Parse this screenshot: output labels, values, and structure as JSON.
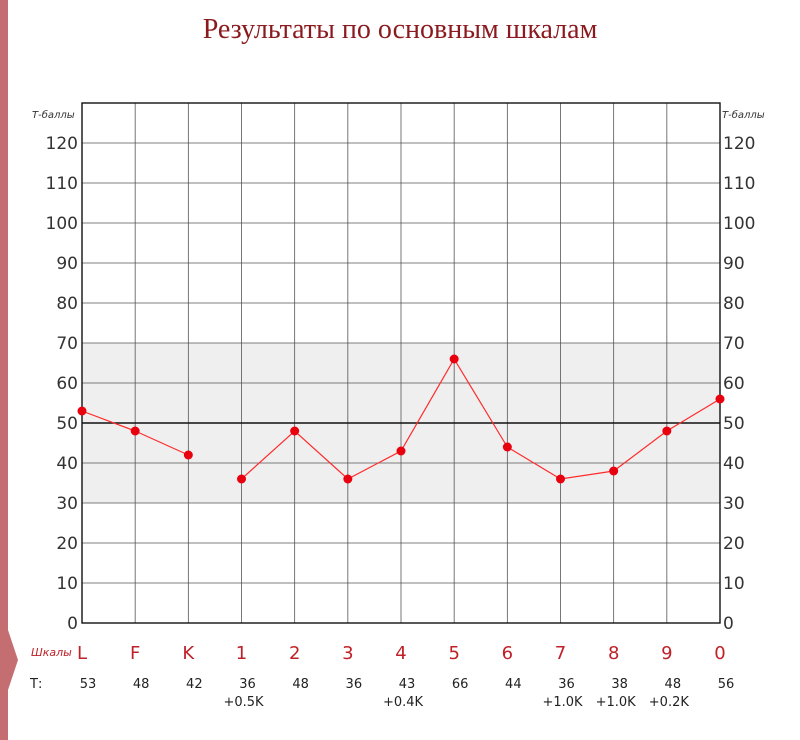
{
  "title": "Результаты по основным шкалам",
  "chart_data": {
    "type": "line",
    "y_axis_caption": "Т-баллы",
    "x_axis_caption": "Шкалы",
    "row_caption": "Т:",
    "categories": [
      "L",
      "F",
      "K",
      "1",
      "2",
      "3",
      "4",
      "5",
      "6",
      "7",
      "8",
      "9",
      "0"
    ],
    "values": [
      53,
      48,
      42,
      36,
      48,
      36,
      43,
      66,
      44,
      36,
      38,
      48,
      56
    ],
    "value_labels": [
      "53",
      "48",
      "42",
      "36",
      "48",
      "36",
      "43",
      "66",
      "44",
      "36",
      "38",
      "48",
      "56"
    ],
    "corrections": [
      "",
      "",
      "",
      "+0.5K",
      "",
      "",
      "+0.4K",
      "",
      "",
      "+1.0K",
      "+1.0K",
      "+0.2K",
      ""
    ],
    "segments": [
      [
        0,
        2
      ],
      [
        3,
        12
      ]
    ],
    "ylim": [
      0,
      120
    ],
    "yticks": [
      0,
      10,
      20,
      30,
      40,
      50,
      60,
      70,
      80,
      90,
      100,
      110,
      120
    ],
    "normal_band": [
      30,
      70
    ],
    "reference_line": 50,
    "colors": {
      "line": "#ff2b2b",
      "marker": "#e8000f",
      "band": "#efefef",
      "grid": "#333333",
      "label": "#c02028"
    }
  }
}
